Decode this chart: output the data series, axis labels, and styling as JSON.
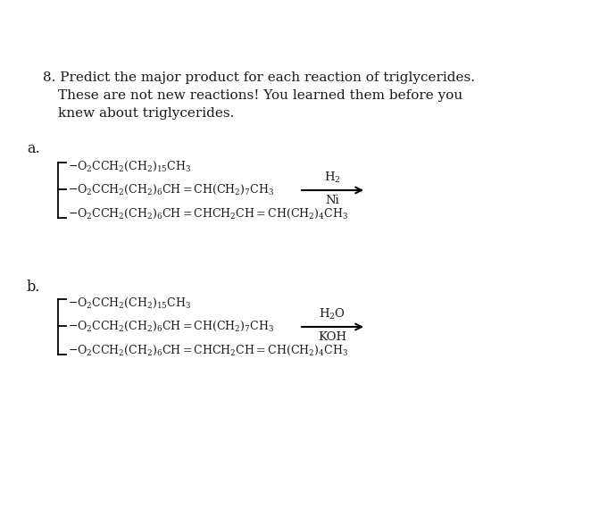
{
  "bg_color": "#ffffff",
  "title_line1": "8. Predict the major product for each reaction of triglycerides.",
  "title_line2": "These are not new reactions! You learned them before you",
  "title_line3": "knew about triglycerides.",
  "label_a": "a.",
  "label_b": "b.",
  "chem_a1": "$\\mathregular{-O_2CCH_2(CH_2)_{15}CH_3}$",
  "chem_a2": "$\\mathregular{-O_2CCH_2(CH_2)_6CH=CH(CH_2)_7CH_3}$",
  "chem_a3": "$\\mathregular{-O_2CCH_2(CH_2)_6CH=CHCH_2CH=CH(CH_2)_4CH_3}$",
  "reagent_a_top": "$\\mathregular{H_2}$",
  "reagent_a_bot": "Ni",
  "chem_b1": "$\\mathregular{-O_2CCH_2(CH_2)_{15}CH_3}$",
  "chem_b2": "$\\mathregular{-O_2CCH_2(CH_2)_6CH=CH(CH_2)_7CH_3}$",
  "chem_b3": "$\\mathregular{-O_2CCH_2(CH_2)_6CH=CHCH_2CH=CH(CH_2)_4CH_3}$",
  "reagent_b_top": "$\\mathregular{H_2O}$",
  "reagent_b_bot": "KOH",
  "fs_title": 11.0,
  "fs_label": 11.5,
  "fs_chem": 9.0,
  "fs_reagent": 9.5
}
